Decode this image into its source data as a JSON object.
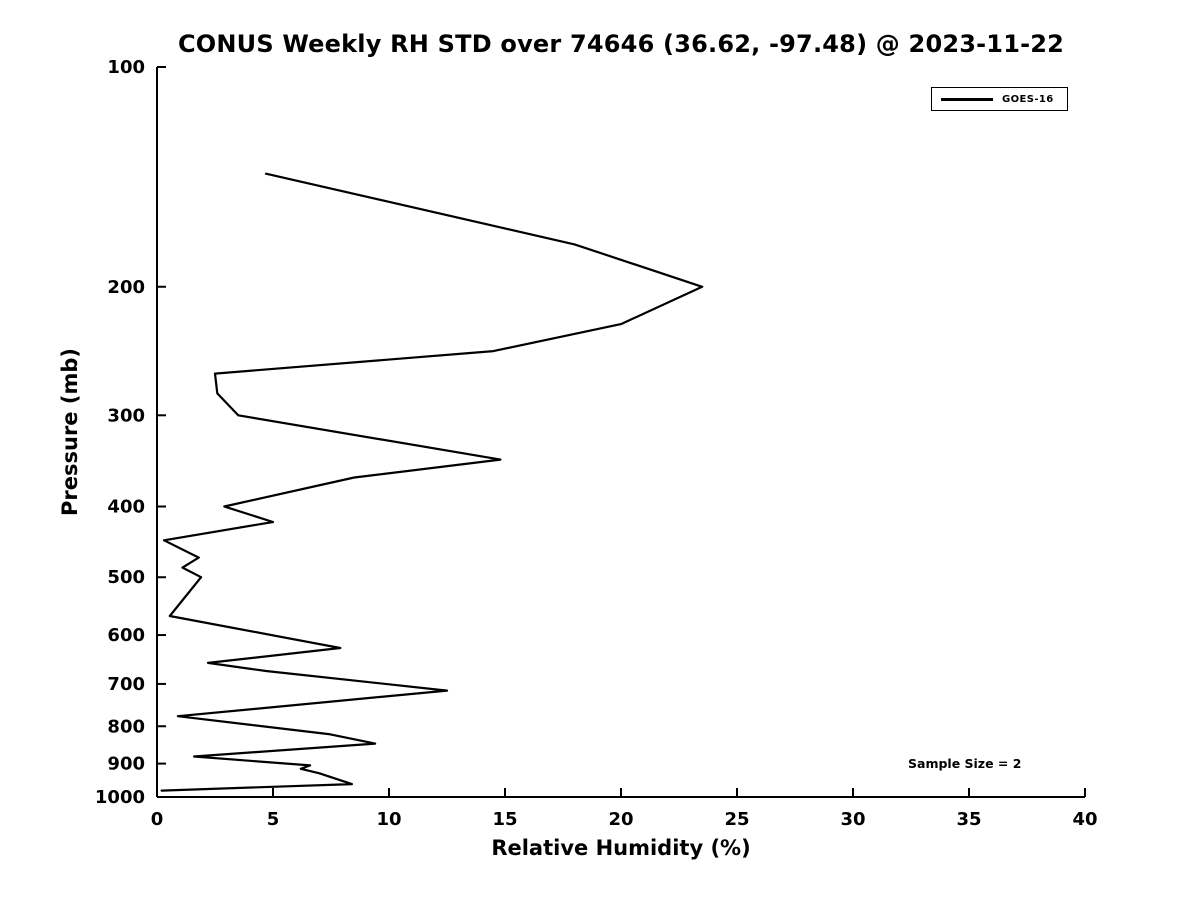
{
  "figure": {
    "background_color": "#ffffff",
    "foreground_color": "#000000"
  },
  "chart_data": {
    "type": "line",
    "title": "CONUS Weekly RH STD over 74646 (36.62, -97.48) @ 2023-11-22",
    "xlabel": "Relative Humidity (%)",
    "ylabel": "Pressure (mb)",
    "xlim": [
      0,
      40
    ],
    "ylim": [
      100,
      1000
    ],
    "x_scale": "linear",
    "y_scale": "log",
    "y_axis_direction": "reversed",
    "x_ticks": [
      0,
      5,
      10,
      15,
      20,
      25,
      30,
      35,
      40
    ],
    "y_ticks": [
      100,
      200,
      300,
      400,
      500,
      600,
      700,
      800,
      900,
      1000
    ],
    "grid": false,
    "legend": {
      "position": "top-right",
      "entries": [
        {
          "label": "GOES-16",
          "color": "#000000",
          "line_style": "solid"
        }
      ]
    },
    "annotation": "Sample Size = 2",
    "series": [
      {
        "name": "GOES-16",
        "color": "#000000",
        "points_format": "[pressure_mb, rh_std_percent]",
        "points": [
          [
            140,
            4.7
          ],
          [
            175,
            18.0
          ],
          [
            200,
            23.5
          ],
          [
            225,
            20.0
          ],
          [
            245,
            14.5
          ],
          [
            263,
            2.5
          ],
          [
            280,
            2.6
          ],
          [
            300,
            3.5
          ],
          [
            345,
            14.8
          ],
          [
            365,
            8.5
          ],
          [
            400,
            2.9
          ],
          [
            420,
            5.0
          ],
          [
            445,
            0.3
          ],
          [
            470,
            1.8
          ],
          [
            485,
            1.1
          ],
          [
            500,
            1.9
          ],
          [
            565,
            0.55
          ],
          [
            625,
            7.9
          ],
          [
            655,
            2.2
          ],
          [
            672,
            4.7
          ],
          [
            715,
            12.5
          ],
          [
            775,
            0.9
          ],
          [
            820,
            7.4
          ],
          [
            845,
            9.4
          ],
          [
            880,
            1.6
          ],
          [
            905,
            6.6
          ],
          [
            915,
            6.2
          ],
          [
            928,
            7.0
          ],
          [
            960,
            8.4
          ],
          [
            980,
            0.2
          ]
        ]
      }
    ]
  }
}
